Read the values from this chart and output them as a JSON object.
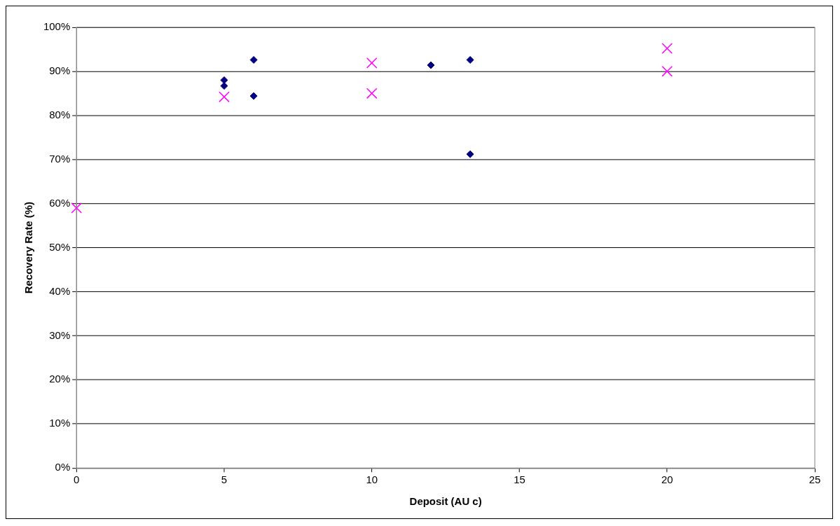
{
  "chart_data": {
    "type": "scatter",
    "xlabel": "Deposit (AU c)",
    "ylabel": "Recovery Rate (%)",
    "xlim": [
      0,
      25
    ],
    "xticks": [
      0,
      5,
      10,
      15,
      20,
      25
    ],
    "ylim": [
      0,
      100
    ],
    "yticks": [
      {
        "value": 0,
        "label": "0%"
      },
      {
        "value": 10,
        "label": "10%"
      },
      {
        "value": 20,
        "label": "20%"
      },
      {
        "value": 30,
        "label": "30%"
      },
      {
        "value": 40,
        "label": "40%"
      },
      {
        "value": 50,
        "label": "50%"
      },
      {
        "value": 60,
        "label": "60%"
      },
      {
        "value": 70,
        "label": "70%"
      },
      {
        "value": 80,
        "label": "80%"
      },
      {
        "value": 90,
        "label": "90%"
      },
      {
        "value": 100,
        "label": "100%"
      }
    ],
    "grid": "y",
    "legend": false,
    "series": [
      {
        "color": "#000080",
        "marker": "diamond",
        "x": [
          5,
          5,
          6,
          6,
          12,
          13.33,
          13.33
        ],
        "values": [
          88,
          86.7,
          92.6,
          84.4,
          91.4,
          92.6,
          71.2
        ]
      },
      {
        "color": "#ff00ff",
        "marker": "cross",
        "x": [
          0,
          5,
          10,
          10,
          20,
          20
        ],
        "values": [
          59,
          84.2,
          91.9,
          85,
          95.2,
          90
        ]
      }
    ]
  }
}
